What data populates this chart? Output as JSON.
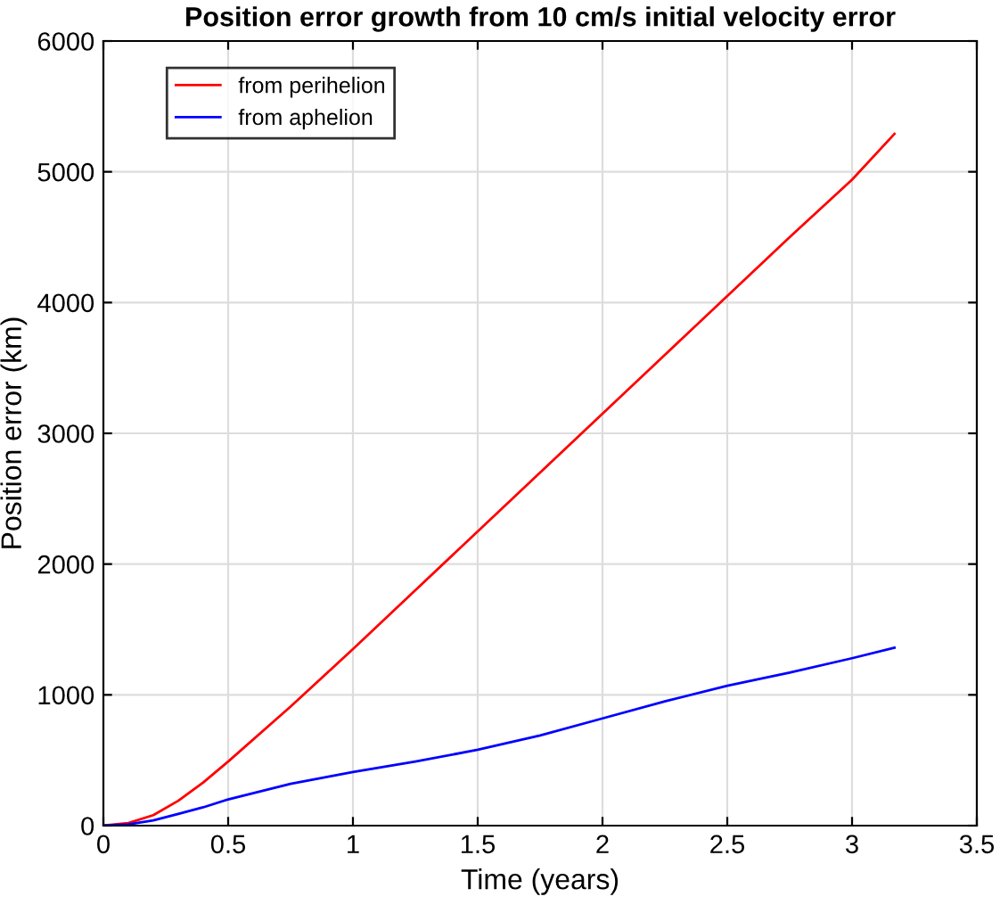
{
  "chart_data": {
    "type": "line",
    "title": "Position error growth from 10 cm/s initial velocity error",
    "xlabel": "Time (years)",
    "ylabel": "Position error (km)",
    "x": [
      0,
      0.1,
      0.2,
      0.3,
      0.4,
      0.5,
      0.75,
      1.0,
      1.25,
      1.5,
      1.75,
      2.0,
      2.25,
      2.5,
      2.75,
      3.0,
      3.17
    ],
    "series": [
      {
        "name": "from perihelion",
        "color": "#ff0000",
        "values": [
          0,
          20,
          80,
          190,
          330,
          490,
          910,
          1350,
          1800,
          2250,
          2700,
          3150,
          3600,
          4050,
          4500,
          4940,
          5290
        ]
      },
      {
        "name": "from aphelion",
        "color": "#0000ff",
        "values": [
          0,
          10,
          40,
          90,
          140,
          200,
          320,
          410,
          490,
          580,
          690,
          820,
          950,
          1070,
          1170,
          1280,
          1360
        ]
      }
    ],
    "xlim": [
      0,
      3.5
    ],
    "xticks": [
      0,
      0.5,
      1,
      1.5,
      2,
      2.5,
      3,
      3.5
    ],
    "ylim": [
      0,
      6000
    ],
    "yticks": [
      0,
      1000,
      2000,
      3000,
      4000,
      5000,
      6000
    ],
    "grid": true,
    "legend": "top left"
  }
}
